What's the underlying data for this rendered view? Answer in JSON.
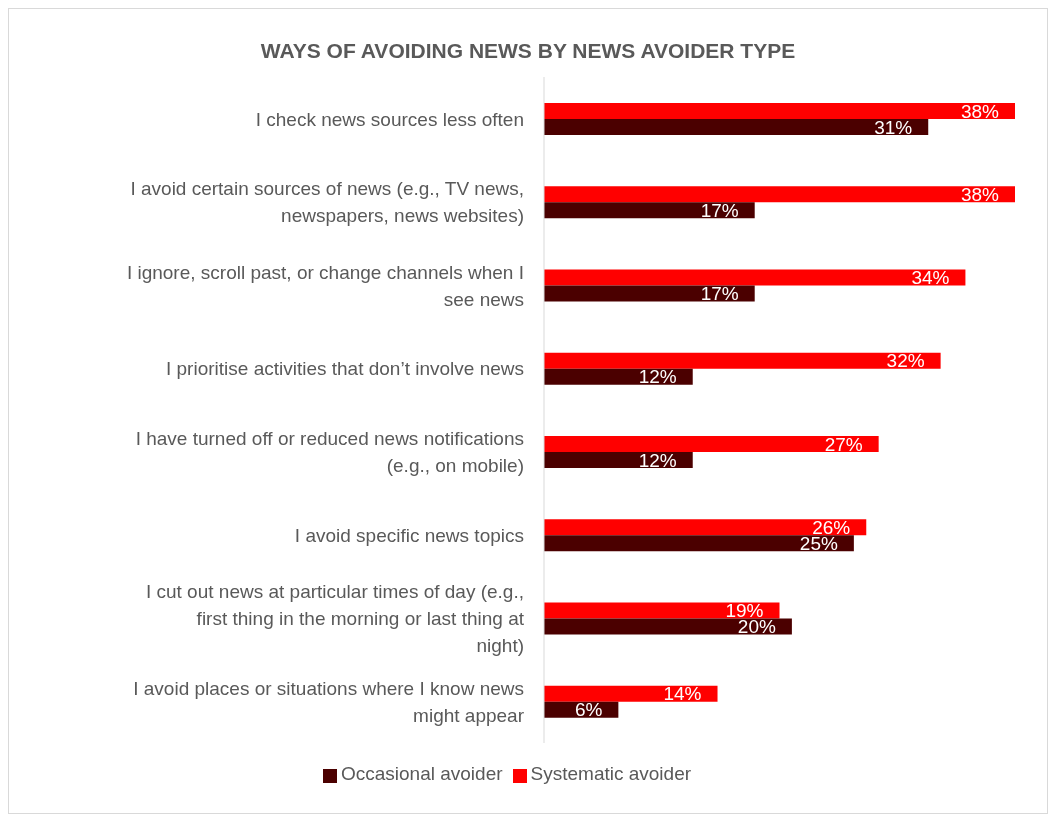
{
  "chart_data": {
    "type": "bar",
    "orientation": "horizontal",
    "title": "WAYS OF AVOIDING NEWS BY NEWS AVOIDER TYPE",
    "categories": [
      "I check news sources less often",
      "I avoid certain sources of news (e.g., TV news, newspapers, news websites)",
      "I ignore, scroll past, or change channels when I see news",
      "I prioritise activities that don’t involve news",
      "I have turned off or reduced news notifications (e.g., on mobile)",
      "I avoid specific news topics",
      "I cut out news at particular times of day (e.g., first thing in the morning or last thing at night)",
      "I avoid places or situations where I know news might appear"
    ],
    "series": [
      {
        "name": "Systematic avoider",
        "color": "#ff0000",
        "values": [
          38,
          38,
          34,
          32,
          27,
          26,
          19,
          14
        ],
        "value_labels": [
          "38%",
          "38%",
          "34%",
          "32%",
          "27%",
          "26%",
          "19%",
          "14%"
        ]
      },
      {
        "name": "Occasional avoider",
        "color": "#4b0000",
        "values": [
          31,
          17,
          17,
          12,
          12,
          25,
          20,
          6
        ],
        "value_labels": [
          "31%",
          "17%",
          "17%",
          "12%",
          "12%",
          "25%",
          "20%",
          "6%"
        ]
      }
    ],
    "legend": "bottom"
  }
}
